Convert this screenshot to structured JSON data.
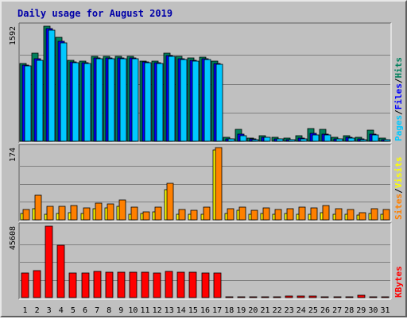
{
  "title": "Daily usage for August 2019",
  "colors": {
    "frame_bg": "#c0c0c0",
    "panel_bg": "#c0c0c0",
    "hits": "#00805c",
    "files": "#0000ff",
    "pages": "#00c8ff",
    "visits": "#ffff00",
    "sites": "#ff8000",
    "kbytes": "#ff0000",
    "weekend_day": "#00805c",
    "weekday": "#000000"
  },
  "chart_data": [
    {
      "type": "bar",
      "panel": "top",
      "legend": [
        "Pages",
        "Files",
        "Hits"
      ],
      "max_label": "1592",
      "ylim": [
        0,
        1592
      ],
      "categories": [
        "1",
        "2",
        "3",
        "4",
        "5",
        "6",
        "7",
        "8",
        "9",
        "10",
        "11",
        "12",
        "13",
        "14",
        "15",
        "16",
        "17",
        "18",
        "19",
        "20",
        "21",
        "22",
        "23",
        "24",
        "25",
        "26",
        "27",
        "28",
        "29",
        "30",
        "31"
      ],
      "series": [
        {
          "name": "Hits",
          "values": [
            1080,
            1220,
            1592,
            1440,
            1120,
            1110,
            1170,
            1170,
            1170,
            1170,
            1110,
            1110,
            1220,
            1170,
            1150,
            1160,
            1110,
            50,
            160,
            40,
            80,
            60,
            40,
            80,
            180,
            160,
            60,
            80,
            50,
            150,
            40
          ]
        },
        {
          "name": "Files",
          "values": [
            1050,
            1140,
            1560,
            1380,
            1100,
            1090,
            1150,
            1150,
            1150,
            1150,
            1100,
            1090,
            1190,
            1140,
            1120,
            1140,
            1080,
            35,
            100,
            30,
            60,
            35,
            25,
            40,
            110,
            100,
            35,
            55,
            30,
            100,
            25
          ]
        },
        {
          "name": "Pages",
          "values": [
            1040,
            1120,
            1540,
            1360,
            1090,
            1080,
            1140,
            1140,
            1140,
            1140,
            1090,
            1080,
            1180,
            1130,
            1110,
            1130,
            1070,
            30,
            80,
            25,
            50,
            30,
            20,
            35,
            90,
            85,
            30,
            45,
            25,
            90,
            20
          ]
        }
      ]
    },
    {
      "type": "bar",
      "panel": "middle",
      "legend": [
        "Sites",
        "Visits"
      ],
      "max_label": "174",
      "ylim": [
        0,
        174
      ],
      "categories": [
        "1",
        "2",
        "3",
        "4",
        "5",
        "6",
        "7",
        "8",
        "9",
        "10",
        "11",
        "12",
        "13",
        "14",
        "15",
        "16",
        "17",
        "18",
        "19",
        "20",
        "21",
        "22",
        "23",
        "24",
        "25",
        "26",
        "27",
        "28",
        "29",
        "30",
        "31"
      ],
      "series": [
        {
          "name": "Visits",
          "values": [
            16,
            26,
            14,
            16,
            18,
            16,
            26,
            28,
            32,
            14,
            16,
            20,
            72,
            14,
            14,
            14,
            168,
            16,
            22,
            14,
            16,
            14,
            16,
            14,
            14,
            18,
            14,
            14,
            12,
            16,
            14
          ]
        },
        {
          "name": "Sites",
          "values": [
            24,
            60,
            32,
            32,
            34,
            28,
            40,
            38,
            48,
            30,
            20,
            30,
            88,
            24,
            22,
            30,
            174,
            26,
            30,
            22,
            28,
            24,
            26,
            30,
            28,
            34,
            26,
            24,
            18,
            26,
            24
          ]
        }
      ]
    },
    {
      "type": "bar",
      "panel": "bottom",
      "legend": [
        "KBytes"
      ],
      "max_label": "45608",
      "ylim": [
        0,
        45608
      ],
      "categories": [
        "1",
        "2",
        "3",
        "4",
        "5",
        "6",
        "7",
        "8",
        "9",
        "10",
        "11",
        "12",
        "13",
        "14",
        "15",
        "16",
        "17",
        "18",
        "19",
        "20",
        "21",
        "22",
        "23",
        "24",
        "25",
        "26",
        "27",
        "28",
        "29",
        "30",
        "31"
      ],
      "series": [
        {
          "name": "KBytes",
          "values": [
            15500,
            17000,
            45608,
            33500,
            15500,
            15500,
            16500,
            16000,
            16000,
            16000,
            16000,
            15500,
            16500,
            16000,
            16000,
            15500,
            15500,
            300,
            500,
            300,
            600,
            600,
            900,
            1000,
            1000,
            400,
            500,
            500,
            1500,
            500,
            400
          ]
        }
      ]
    }
  ],
  "day_labels": [
    {
      "text": "1",
      "weekend": false
    },
    {
      "text": "2",
      "weekend": false
    },
    {
      "text": "3",
      "weekend": true
    },
    {
      "text": "4",
      "weekend": true
    },
    {
      "text": "5",
      "weekend": false
    },
    {
      "text": "6",
      "weekend": false
    },
    {
      "text": "7",
      "weekend": false
    },
    {
      "text": "8",
      "weekend": false
    },
    {
      "text": "9",
      "weekend": false
    },
    {
      "text": "10",
      "weekend": true
    },
    {
      "text": "11",
      "weekend": true
    },
    {
      "text": "12",
      "weekend": false
    },
    {
      "text": "13",
      "weekend": false
    },
    {
      "text": "14",
      "weekend": false
    },
    {
      "text": "15",
      "weekend": false
    },
    {
      "text": "16",
      "weekend": false
    },
    {
      "text": "17",
      "weekend": true
    },
    {
      "text": "18",
      "weekend": true
    },
    {
      "text": "19",
      "weekend": false
    },
    {
      "text": "20",
      "weekend": false
    },
    {
      "text": "21",
      "weekend": false
    },
    {
      "text": "22",
      "weekend": false
    },
    {
      "text": "23",
      "weekend": false
    },
    {
      "text": "24",
      "weekend": true
    },
    {
      "text": "25",
      "weekend": true
    },
    {
      "text": "26",
      "weekend": false
    },
    {
      "text": "27",
      "weekend": false
    },
    {
      "text": "28",
      "weekend": false
    },
    {
      "text": "29",
      "weekend": false
    },
    {
      "text": "30",
      "weekend": false
    },
    {
      "text": "31",
      "weekend": true
    }
  ]
}
